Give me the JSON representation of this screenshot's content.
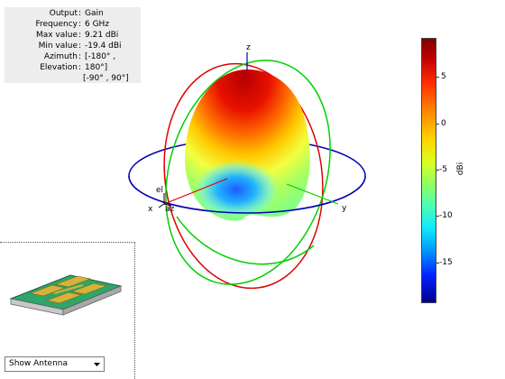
{
  "info_panel": {
    "rows": [
      {
        "key": "Output",
        "value": "Gain"
      },
      {
        "key": "Frequency",
        "value": "6 GHz"
      },
      {
        "key": "Max value",
        "value": "9.21 dBi"
      },
      {
        "key": "Min value",
        "value": "-19.4 dBi"
      },
      {
        "key": "Azimuth",
        "value": "[-180° ,"
      },
      {
        "key": "Elevation",
        "value": "180°]"
      }
    ],
    "extra_line": "[-90° , 90°]",
    "separator": ":"
  },
  "axes": {
    "x": "x",
    "y": "y",
    "z": "z",
    "el": "el",
    "az": "az"
  },
  "colorbar": {
    "unit": "dBi",
    "ticks": [
      "5",
      "0",
      "-5",
      "-10",
      "-15"
    ],
    "tick_values": [
      5,
      0,
      -5,
      -10,
      -15
    ],
    "range": [
      -19.4,
      9.21
    ],
    "colormap": "jet"
  },
  "view_selector": {
    "value": "Show Antenna"
  },
  "colors": {
    "azimuth_circle": "#0000b4",
    "elevation_circle_red": "#e00000",
    "elevation_circle_green": "#00d000",
    "substrate": "#2ea66a",
    "patch": "#d6b23a"
  }
}
